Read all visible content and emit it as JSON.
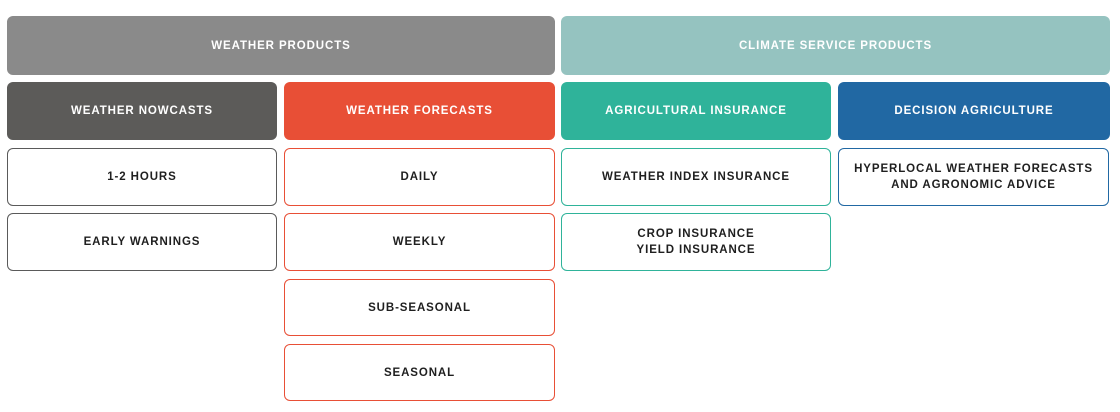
{
  "categories": {
    "weather": {
      "label": "WEATHER PRODUCTS",
      "color": "#8a8a8a"
    },
    "climate": {
      "label": "CLIMATE SERVICE PRODUCTS",
      "color": "#95c3c0"
    }
  },
  "columns": [
    {
      "header": "WEATHER NOWCASTS",
      "color": "#5c5b59",
      "items": [
        "1-2 HOURS",
        "EARLY WARNINGS"
      ]
    },
    {
      "header": "WEATHER FORECASTS",
      "color": "#e84f36",
      "items": [
        "DAILY",
        "WEEKLY",
        "SUB-SEASONAL",
        "SEASONAL"
      ]
    },
    {
      "header": "AGRICULTURAL INSURANCE",
      "color": "#2fb39a",
      "items": [
        "WEATHER INDEX INSURANCE",
        "CROP INSURANCE\nYIELD INSURANCE"
      ]
    },
    {
      "header": "DECISION AGRICULTURE",
      "color": "#2168a3",
      "items": [
        "HYPERLOCAL WEATHER FORECASTS\nAND AGRONOMIC ADVICE"
      ]
    }
  ]
}
